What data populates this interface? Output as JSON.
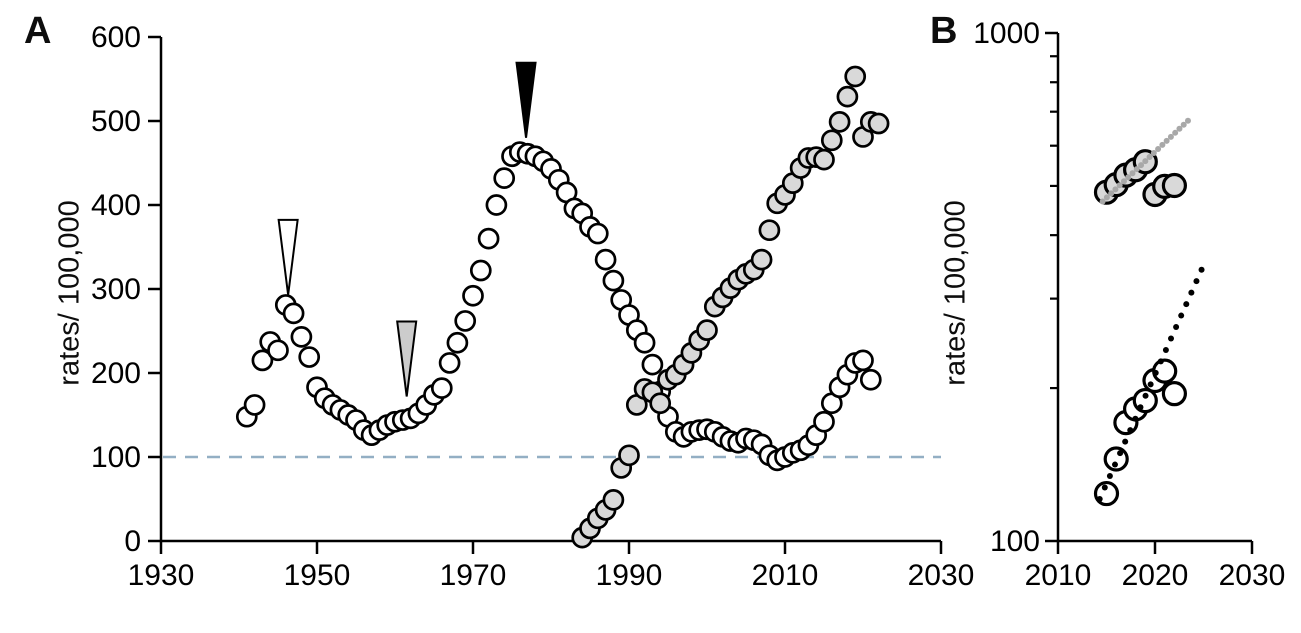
{
  "figure": {
    "background": "#ffffff",
    "panel_a_label": "A",
    "panel_b_label": "B"
  },
  "colors": {
    "axis": "#000000",
    "open_marker_fill": "#ffffff",
    "gray_marker_fill": "#d9d9d9",
    "marker_stroke": "#000000",
    "reference_dashed_line": "#93afc4",
    "white_arrow_fill": "#ffffff",
    "gray_arrow_fill": "#cccccc",
    "black_arrow_fill": "#000000",
    "gray_trendline_dots": "#a8a8a8",
    "black_trendline_dots": "#000000"
  },
  "marker_styles": {
    "open": {
      "fill": "#ffffff",
      "stroke": "#000000"
    },
    "gray": {
      "fill": "#d9d9d9",
      "stroke": "#000000"
    }
  },
  "chart_data": [
    {
      "panel": "A",
      "type": "scatter",
      "title": "",
      "xlabel": "",
      "ylabel": "rates/ 100,000",
      "xlim": [
        1930,
        2030
      ],
      "ylim": [
        0,
        600
      ],
      "yscale": "linear",
      "grid": false,
      "x_ticks": [
        1930,
        1950,
        1970,
        1990,
        2010,
        2030
      ],
      "y_ticks": [
        0,
        100,
        200,
        300,
        400,
        500,
        600
      ],
      "marker_radius": 9.5,
      "marker_stroke_width": 2.7,
      "reference_line": {
        "value": 100,
        "style": "dashed",
        "color": "#93afc4"
      },
      "annotations": [
        {
          "name": "white-arrow-1946",
          "type": "arrow-down",
          "year": 1946.3,
          "value": 293,
          "fill": "#ffffff"
        },
        {
          "name": "gray-arrow-1961",
          "type": "arrow-down",
          "year": 1961.5,
          "value": 172,
          "fill": "#cccccc"
        },
        {
          "name": "black-arrow-1977",
          "type": "arrow-down",
          "year": 1976.8,
          "value": 480,
          "fill": "#000000"
        }
      ],
      "series": [
        {
          "name": "open-circles",
          "marker": "open",
          "points": [
            [
              1941,
              148
            ],
            [
              1942,
              162
            ],
            [
              1943,
              215
            ],
            [
              1944,
              237
            ],
            [
              1945,
              227
            ],
            [
              1946,
              281
            ],
            [
              1947,
              271
            ],
            [
              1948,
              243
            ],
            [
              1949,
              219
            ],
            [
              1950,
              183
            ],
            [
              1951,
              170
            ],
            [
              1952,
              162
            ],
            [
              1953,
              156
            ],
            [
              1954,
              150
            ],
            [
              1955,
              144
            ],
            [
              1956,
              132
            ],
            [
              1957,
              126
            ],
            [
              1958,
              132
            ],
            [
              1959,
              138
            ],
            [
              1960,
              142
            ],
            [
              1961,
              144
            ],
            [
              1962,
              146
            ],
            [
              1963,
              152
            ],
            [
              1964,
              162
            ],
            [
              1965,
              174
            ],
            [
              1966,
              182
            ],
            [
              1967,
              212
            ],
            [
              1968,
              236
            ],
            [
              1969,
              262
            ],
            [
              1970,
              292
            ],
            [
              1971,
              322
            ],
            [
              1972,
              360
            ],
            [
              1973,
              400
            ],
            [
              1974,
              432
            ],
            [
              1975,
              458
            ],
            [
              1976,
              463
            ],
            [
              1977,
              461
            ],
            [
              1978,
              458
            ],
            [
              1979,
              452
            ],
            [
              1980,
              443
            ],
            [
              1981,
              430
            ],
            [
              1982,
              415
            ],
            [
              1983,
              396
            ],
            [
              1984,
              390
            ],
            [
              1985,
              374
            ],
            [
              1986,
              366
            ],
            [
              1987,
              335
            ],
            [
              1988,
              310
            ],
            [
              1989,
              287
            ],
            [
              1990,
              269
            ],
            [
              1991,
              251
            ],
            [
              1992,
              236
            ],
            [
              1993,
              210
            ],
            [
              1994,
              178
            ],
            [
              1995,
              148
            ],
            [
              1996,
              130
            ],
            [
              1997,
              124
            ],
            [
              1998,
              130
            ],
            [
              1999,
              132
            ],
            [
              2000,
              133
            ],
            [
              2001,
              130
            ],
            [
              2002,
              124
            ],
            [
              2003,
              119
            ],
            [
              2004,
              117
            ],
            [
              2005,
              122
            ],
            [
              2006,
              120
            ],
            [
              2007,
              115
            ],
            [
              2008,
              102
            ],
            [
              2009,
              96
            ],
            [
              2010,
              100
            ],
            [
              2011,
              105
            ],
            [
              2012,
              108
            ],
            [
              2013,
              114
            ],
            [
              2014,
              126
            ],
            [
              2015,
              142
            ],
            [
              2016,
              164
            ],
            [
              2017,
              183
            ],
            [
              2018,
              198
            ],
            [
              2019,
              212
            ],
            [
              2020,
              215
            ],
            [
              2021,
              192
            ]
          ]
        },
        {
          "name": "gray-circles",
          "marker": "gray",
          "points": [
            [
              1984,
              4
            ],
            [
              1985,
              15
            ],
            [
              1986,
              27
            ],
            [
              1987,
              37
            ],
            [
              1988,
              49
            ],
            [
              1989,
              87
            ],
            [
              1990,
              102
            ],
            [
              1991,
              162
            ],
            [
              1992,
              181
            ],
            [
              1993,
              177
            ],
            [
              1994,
              164
            ],
            [
              1995,
              192
            ],
            [
              1996,
              198
            ],
            [
              1997,
              210
            ],
            [
              1998,
              224
            ],
            [
              1999,
              239
            ],
            [
              2000,
              251
            ],
            [
              2001,
              279
            ],
            [
              2002,
              290
            ],
            [
              2003,
              301
            ],
            [
              2004,
              311
            ],
            [
              2005,
              318
            ],
            [
              2006,
              323
            ],
            [
              2007,
              335
            ],
            [
              2008,
              370
            ],
            [
              2009,
              402
            ],
            [
              2010,
              412
            ],
            [
              2011,
              426
            ],
            [
              2012,
              444
            ],
            [
              2013,
              456
            ],
            [
              2014,
              457
            ],
            [
              2015,
              454
            ],
            [
              2016,
              477
            ],
            [
              2017,
              499
            ],
            [
              2018,
              529
            ],
            [
              2019,
              553
            ],
            [
              2020,
              481
            ],
            [
              2021,
              499
            ],
            [
              2022,
              497
            ]
          ]
        }
      ]
    },
    {
      "panel": "B",
      "type": "scatter",
      "title": "",
      "xlabel": "",
      "ylabel": "rates/ 100,000",
      "xlim": [
        2010,
        2030
      ],
      "ylim": [
        100,
        1000
      ],
      "yscale": "log",
      "grid": false,
      "x_ticks": [
        2010,
        2020,
        2030
      ],
      "y_ticks": [
        100,
        1000
      ],
      "y_ticks_minor": [
        200,
        300,
        400,
        500,
        600,
        700,
        800,
        900
      ],
      "marker_radius": 11,
      "marker_stroke_width": 3.2,
      "series": [
        {
          "name": "gray-circles",
          "marker": "gray",
          "points": [
            [
              2015,
              486
            ],
            [
              2016,
              503
            ],
            [
              2017,
              525
            ],
            [
              2018,
              538
            ],
            [
              2019,
              558
            ],
            [
              2020,
              481
            ],
            [
              2021,
              499
            ],
            [
              2022,
              501
            ]
          ]
        },
        {
          "name": "open-circles",
          "marker": "open",
          "points": [
            [
              2015,
              124
            ],
            [
              2016,
              145
            ],
            [
              2017,
              171
            ],
            [
              2018,
              182
            ],
            [
              2019,
              189
            ],
            [
              2020,
              207
            ],
            [
              2021,
              216
            ],
            [
              2022,
              195
            ]
          ]
        }
      ],
      "trendlines": [
        {
          "name": "gray-dotted-projection",
          "color": "#a8a8a8",
          "start": [
            2014.6,
            466
          ],
          "end": [
            2023.4,
            672
          ],
          "dot_spacing_years": 0.45,
          "dot_radius": 3
        },
        {
          "name": "black-dotted-projection",
          "color": "#000000",
          "start": [
            2014.3,
            121
          ],
          "end": [
            2024.8,
            342
          ],
          "dot_spacing_years": 0.52,
          "dot_radius": 3
        }
      ]
    }
  ]
}
